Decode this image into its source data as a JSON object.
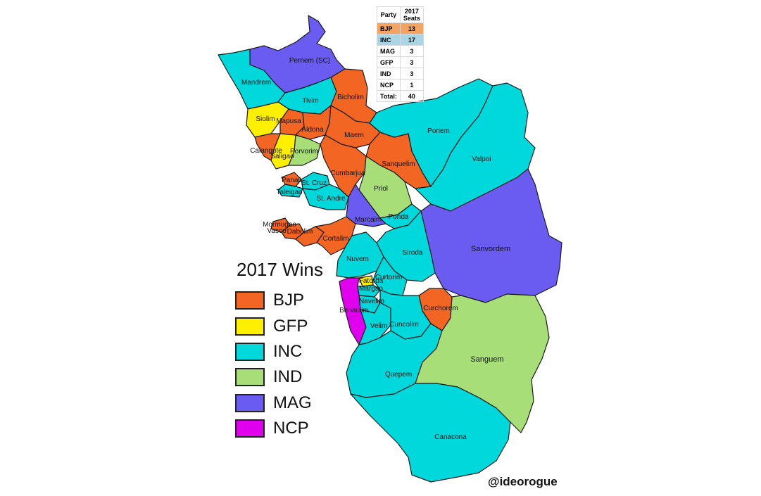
{
  "legend": {
    "title": "2017 Wins",
    "items": [
      {
        "party": "BJP",
        "color": "#f26522"
      },
      {
        "party": "GFP",
        "color": "#ffef00"
      },
      {
        "party": "INC",
        "color": "#00d8dc"
      },
      {
        "party": "IND",
        "color": "#a8de78"
      },
      {
        "party": "MAG",
        "color": "#6a5cf0"
      },
      {
        "party": "NCP",
        "color": "#e000ee"
      }
    ]
  },
  "seats_table": {
    "header": [
      "Party",
      "2017 Seats"
    ],
    "rows": [
      {
        "party": "BJP",
        "seats": "13",
        "highlight": "#f4a460"
      },
      {
        "party": "INC",
        "seats": "17",
        "highlight": "#a9d6e5"
      },
      {
        "party": "MAG",
        "seats": "3",
        "highlight": ""
      },
      {
        "party": "GFP",
        "seats": "3",
        "highlight": ""
      },
      {
        "party": "IND",
        "seats": "3",
        "highlight": ""
      },
      {
        "party": "NCP",
        "seats": "1",
        "highlight": ""
      },
      {
        "party": "Total:",
        "seats": "40",
        "highlight": ""
      }
    ]
  },
  "constituencies": {
    "pernem": "Pernem (SC)",
    "mandrem": "Mandrem",
    "tivim": "Tivim",
    "bicholim": "Bicholim",
    "siolim": "Siolim",
    "mapusa": "Mapusa",
    "aldona": "Aldona",
    "maem": "Maem",
    "calangute": "Calangute",
    "saligao": "Saligao",
    "porvorim": "Porvorim",
    "cumbarjua": "Cumbarjua",
    "sanquelim": "Sanquelim",
    "poriem": "Poriem",
    "valpoi": "Valpoi",
    "panaji": "Panaji",
    "st_cruz": "St. Cruz",
    "taleigao": "Taleigao",
    "st_andre": "St. Andre",
    "priol": "Priol",
    "ponda": "Ponda",
    "marcaim": "Marcaim",
    "mormugao": "Mormugao",
    "vasco": "Vasco",
    "dabolim": "Dabolim",
    "cortalim": "Cortalim",
    "siroda": "Siroda",
    "sanvordem": "Sanvordem",
    "nuvem": "Nuvem",
    "curtorim": "Curtorim",
    "fatorda": "Fatorda",
    "margao": "Margao",
    "navelim": "Navelim",
    "benaulim": "Benaulim",
    "curchorem": "Curchorem",
    "velim": "Velim",
    "cuncolim": "Cuncolim",
    "quepem": "Quepem",
    "sanguem": "Sanguem",
    "canacona": "Canacona"
  },
  "winners": {
    "pernem": "MAG",
    "mandrem": "INC",
    "tivim": "INC",
    "bicholim": "BJP",
    "siolim": "GFP",
    "mapusa": "BJP",
    "aldona": "BJP",
    "maem": "BJP",
    "calangute": "BJP",
    "saligao": "GFP",
    "porvorim": "IND",
    "cumbarjua": "BJP",
    "sanquelim": "BJP",
    "poriem": "INC",
    "valpoi": "INC",
    "panaji": "BJP",
    "st_cruz": "INC",
    "taleigao": "INC",
    "st_andre": "INC",
    "priol": "IND",
    "ponda": "INC",
    "marcaim": "MAG",
    "mormugao": "BJP",
    "vasco": "BJP",
    "dabolim": "BJP",
    "cortalim": "BJP",
    "siroda": "INC",
    "sanvordem": "MAG",
    "nuvem": "INC",
    "curtorim": "INC",
    "fatorda": "GFP",
    "margao": "INC",
    "navelim": "INC",
    "benaulim": "NCP",
    "curchorem": "BJP",
    "velim": "INC",
    "cuncolim": "INC",
    "quepem": "INC",
    "sanguem": "IND",
    "canacona": "INC"
  },
  "credit": "@ideorogue"
}
